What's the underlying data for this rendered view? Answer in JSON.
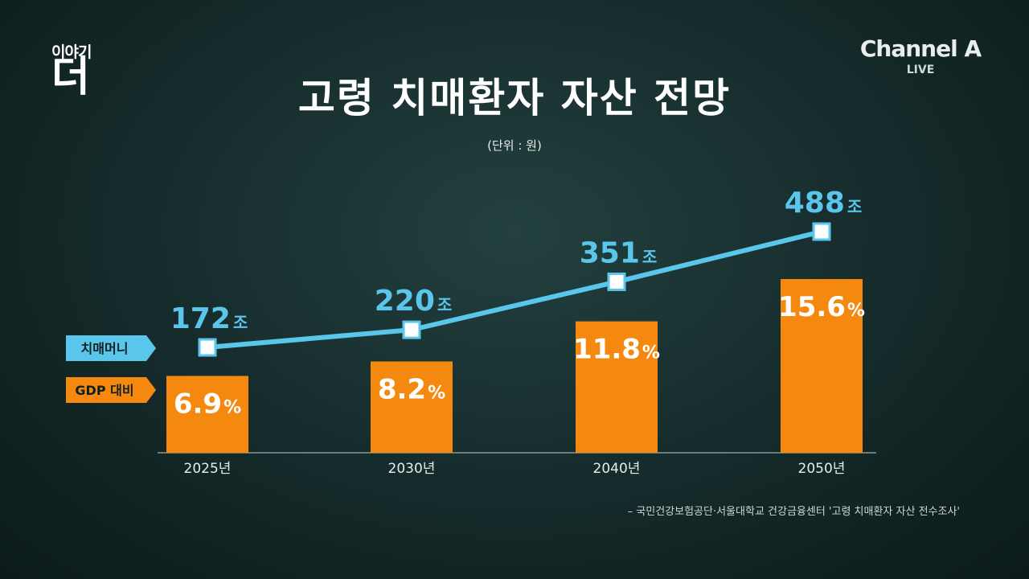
{
  "logo_left": {
    "top": "이야기",
    "big": "더"
  },
  "logo_right": {
    "name": "Channel A",
    "live": "LIVE"
  },
  "colors": {
    "line": "#5bc6ec",
    "bar": "#f5890f",
    "legend_line": "#5bc6ec",
    "legend_bar": "#f5890f"
  },
  "chart_data": {
    "type": "bar",
    "title": "고령 치매환자 자산 전망",
    "unit_note": "(단위 : 원)",
    "categories": [
      "2025년",
      "2030년",
      "2040년",
      "2050년"
    ],
    "series": [
      {
        "name": "치매머니",
        "type": "line",
        "values": [
          172,
          220,
          351,
          488
        ],
        "suffix": "조"
      },
      {
        "name": "GDP 대비",
        "type": "bar",
        "values": [
          6.9,
          8.2,
          11.8,
          15.6
        ],
        "suffix": "%"
      }
    ],
    "legend_placement": "left",
    "grid": false
  },
  "source": "– 국민건강보험공단·서울대학교 건강금융센터 '고령 치매환자 자산 전수조사'"
}
